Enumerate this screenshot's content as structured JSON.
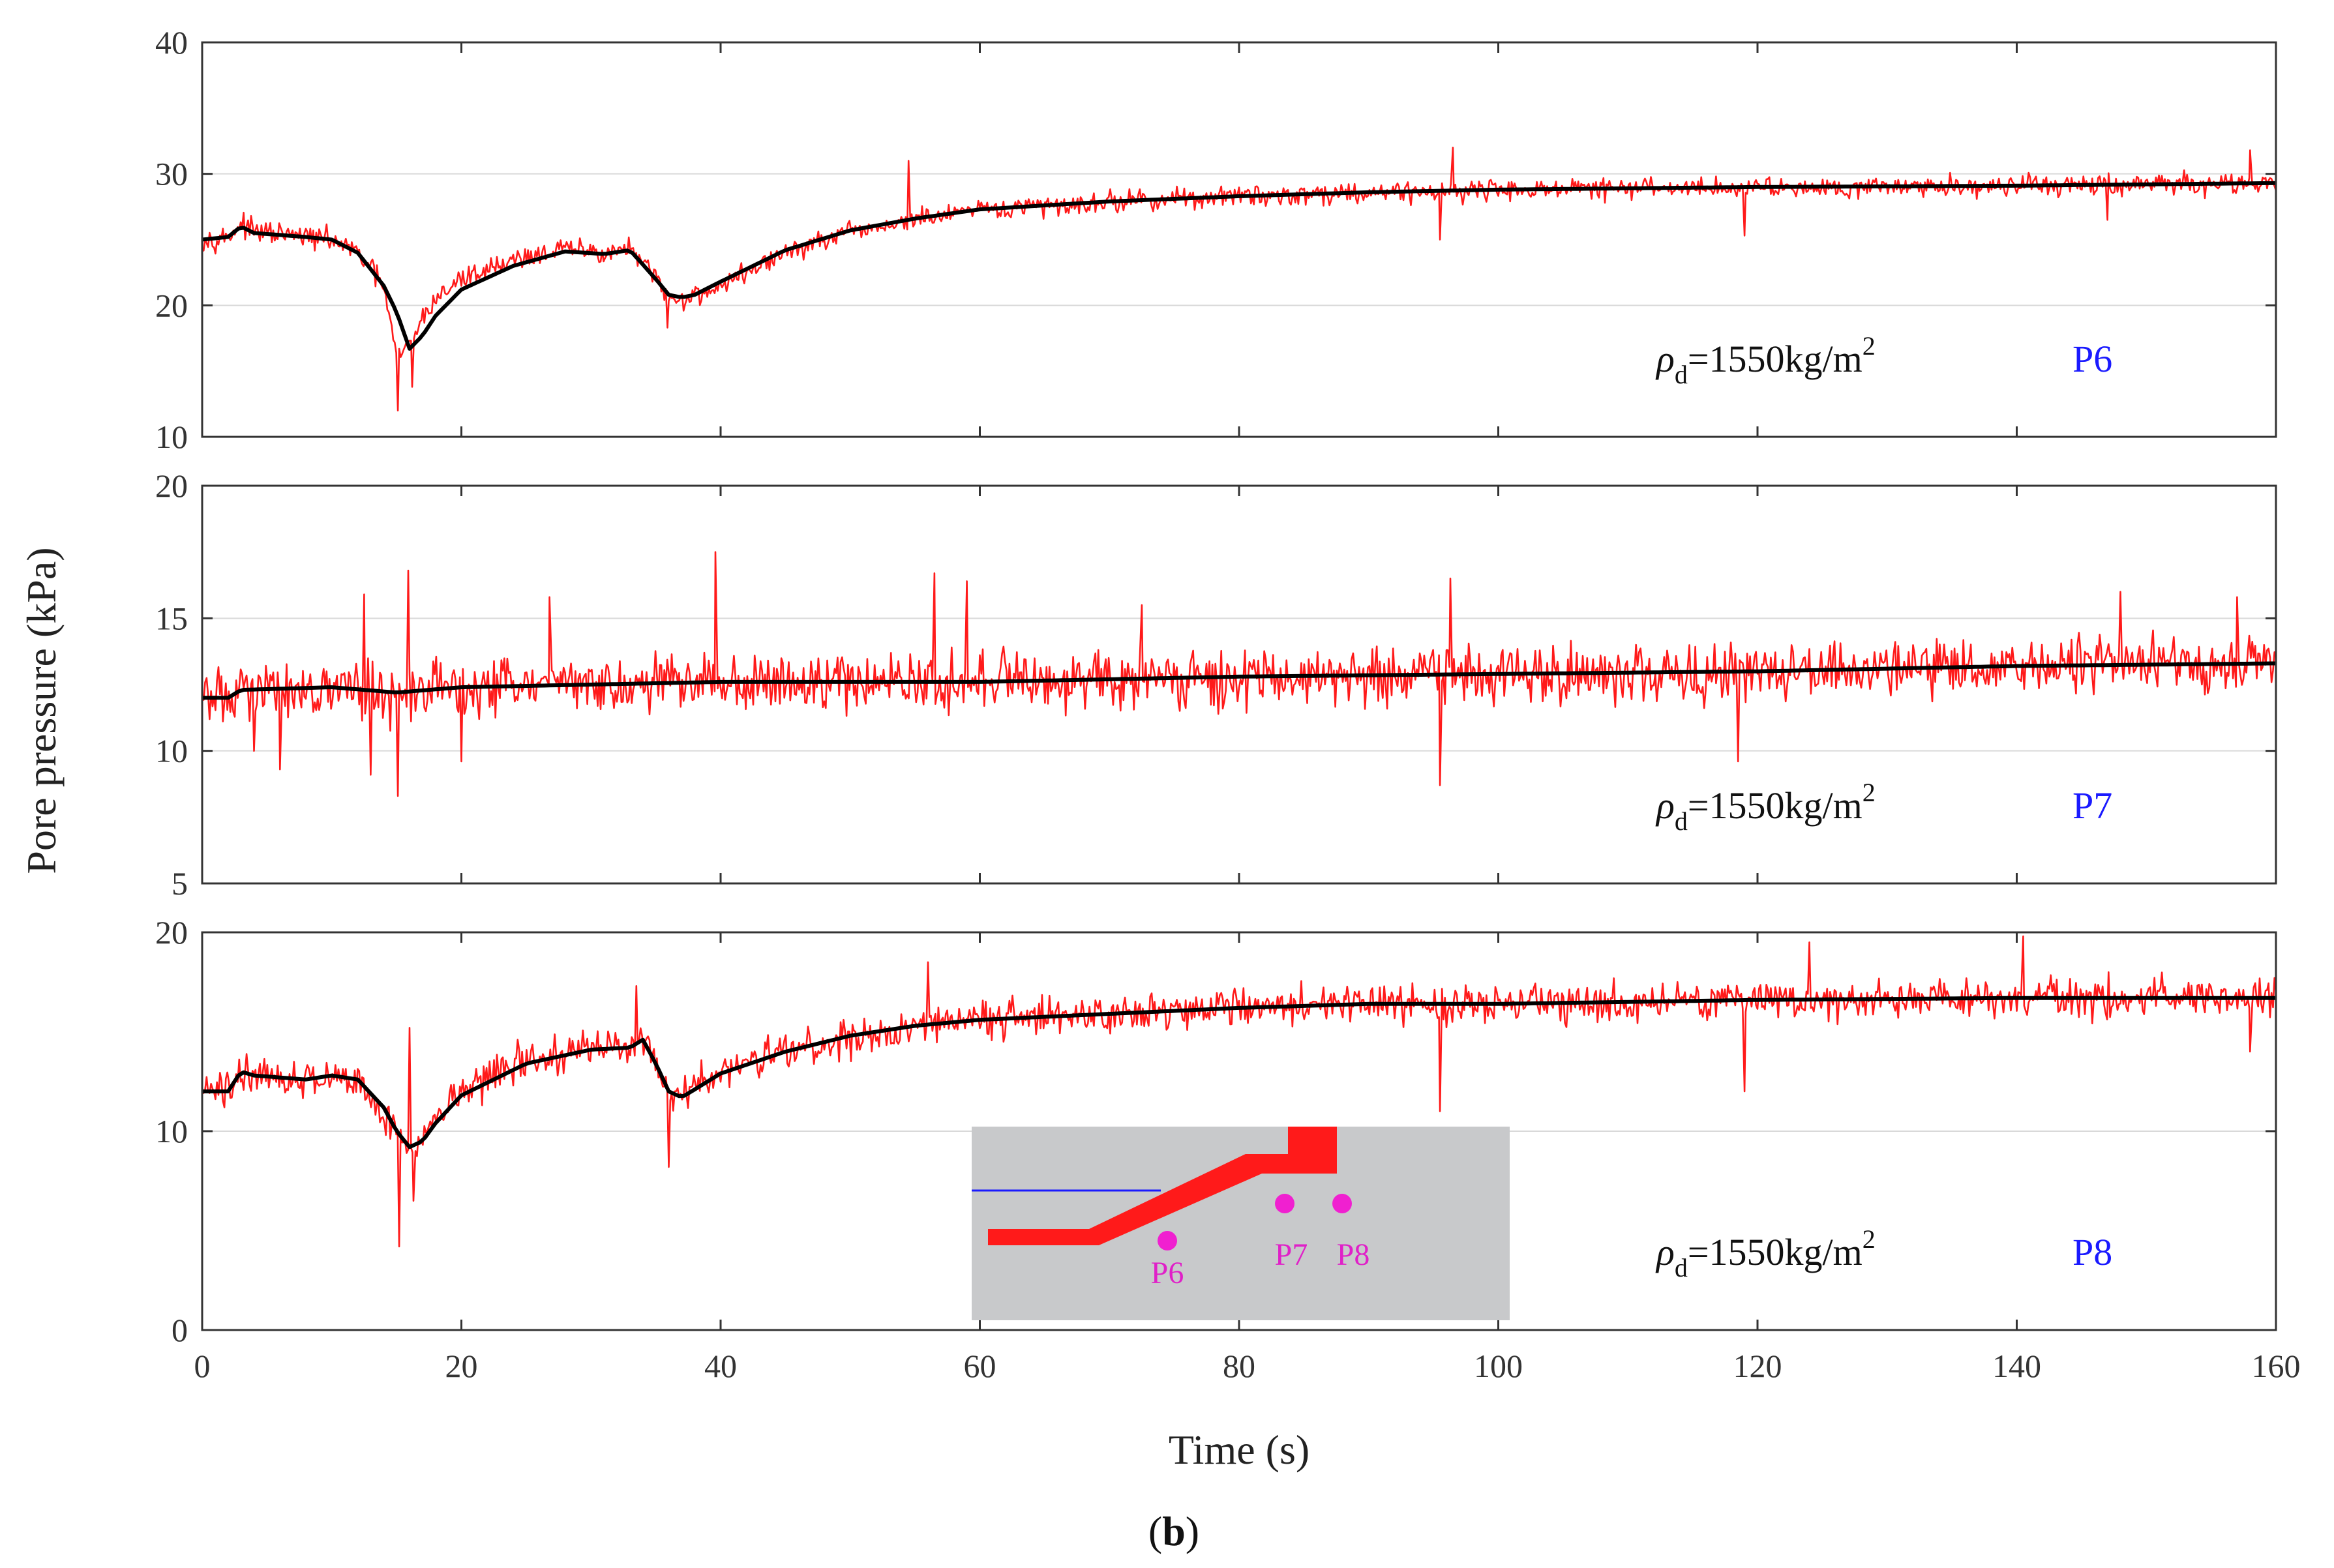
{
  "chart_data": [
    {
      "type": "line",
      "panel": "P6",
      "probe_label": "P6",
      "density_symbol": "ρ",
      "density_subscript": "d",
      "density_value": "=1550kg/m",
      "density_exponent": "2",
      "xlim": [
        0,
        160
      ],
      "ylim": [
        10,
        40
      ],
      "xticks": [
        0,
        20,
        40,
        60,
        80,
        100,
        120,
        140,
        160
      ],
      "yticks": [
        10,
        20,
        30,
        40
      ],
      "grid": true,
      "series": [
        {
          "name": "raw",
          "color": "#ff1a1a",
          "noise_amplitude": 1.2,
          "x": [
            0,
            2,
            3,
            4,
            8,
            10,
            12,
            14,
            15,
            16,
            17,
            18,
            20,
            24,
            28,
            31,
            33,
            35,
            36,
            37,
            38,
            40,
            45,
            50,
            55,
            60,
            70,
            80,
            90,
            100,
            120,
            140,
            160
          ],
          "values": [
            25,
            25.2,
            26.2,
            25.6,
            25.2,
            25,
            24,
            21.5,
            16,
            17,
            19,
            20.5,
            22,
            23.5,
            24.3,
            24,
            24.3,
            22,
            20.5,
            20.5,
            20.7,
            21.5,
            24,
            25.5,
            26.5,
            27.2,
            27.9,
            28.3,
            28.6,
            28.8,
            29.0,
            29.1,
            29.3
          ],
          "spikes": [
            [
              15.1,
              12.0
            ],
            [
              16.2,
              13.8
            ],
            [
              35.9,
              18.3
            ],
            [
              54.5,
              31.0
            ],
            [
              95.5,
              25.0
            ],
            [
              96.5,
              32.0
            ],
            [
              119,
              25.3
            ],
            [
              147,
              26.5
            ],
            [
              158,
              31.8
            ]
          ]
        },
        {
          "name": "trend",
          "color": "#000000",
          "x": [
            0,
            2,
            3,
            4,
            8,
            10,
            12,
            14,
            15,
            16,
            17,
            18,
            20,
            24,
            28,
            31,
            33,
            35,
            36,
            37,
            38,
            40,
            45,
            50,
            55,
            60,
            70,
            80,
            90,
            100,
            120,
            140,
            160
          ],
          "values": [
            25,
            25.2,
            26.0,
            25.5,
            25.2,
            25,
            24,
            21.5,
            19.5,
            16.7,
            17.7,
            19.2,
            21.2,
            23.0,
            24.1,
            23.9,
            24.2,
            22.0,
            20.8,
            20.6,
            20.8,
            21.8,
            24.2,
            25.7,
            26.6,
            27.3,
            27.9,
            28.3,
            28.6,
            28.8,
            29.0,
            29.1,
            29.3
          ]
        }
      ]
    },
    {
      "type": "line",
      "panel": "P7",
      "probe_label": "P7",
      "density_symbol": "ρ",
      "density_subscript": "d",
      "density_value": "=1550kg/m",
      "density_exponent": "2",
      "xlim": [
        0,
        160
      ],
      "ylim": [
        5,
        20
      ],
      "xticks": [
        0,
        20,
        40,
        60,
        80,
        100,
        120,
        140,
        160
      ],
      "yticks": [
        5,
        10,
        15,
        20
      ],
      "grid": true,
      "series": [
        {
          "name": "raw",
          "color": "#ff1a1a",
          "noise_amplitude": 1.6,
          "x": [
            0,
            2,
            3,
            10,
            15,
            20,
            30,
            40,
            60,
            80,
            100,
            120,
            140,
            160
          ],
          "values": [
            12.0,
            12.0,
            12.3,
            12.4,
            12.1,
            12.4,
            12.5,
            12.6,
            12.6,
            12.8,
            12.9,
            13.0,
            13.2,
            13.3
          ],
          "spikes": [
            [
              4,
              10.0
            ],
            [
              6,
              9.3
            ],
            [
              12.5,
              15.9
            ],
            [
              13.0,
              9.1
            ],
            [
              15.1,
              8.3
            ],
            [
              15.9,
              16.8
            ],
            [
              20.0,
              9.6
            ],
            [
              26.8,
              15.8
            ],
            [
              39.6,
              17.5
            ],
            [
              56.5,
              16.7
            ],
            [
              59.0,
              16.4
            ],
            [
              72.5,
              15.5
            ],
            [
              95.5,
              8.7
            ],
            [
              96.3,
              16.5
            ],
            [
              118.5,
              9.6
            ],
            [
              148,
              16.0
            ],
            [
              157,
              15.8
            ]
          ]
        },
        {
          "name": "trend",
          "color": "#000000",
          "x": [
            0,
            2,
            3,
            10,
            15,
            20,
            30,
            40,
            60,
            80,
            100,
            120,
            140,
            160
          ],
          "values": [
            12.0,
            12.0,
            12.3,
            12.4,
            12.2,
            12.4,
            12.5,
            12.6,
            12.6,
            12.8,
            12.9,
            13.0,
            13.2,
            13.3
          ]
        }
      ]
    },
    {
      "type": "line",
      "panel": "P8",
      "probe_label": "P8",
      "density_symbol": "ρ",
      "density_subscript": "d",
      "density_value": "=1550kg/m",
      "density_exponent": "2",
      "xlim": [
        0,
        160
      ],
      "ylim": [
        0,
        20
      ],
      "xticks": [
        0,
        20,
        40,
        60,
        80,
        100,
        120,
        140,
        160
      ],
      "yticks": [
        0,
        10,
        20
      ],
      "grid": true,
      "inset_labels": [
        "P6",
        "P7",
        "P8"
      ],
      "series": [
        {
          "name": "raw",
          "color": "#ff1a1a",
          "noise_amplitude": 1.4,
          "x": [
            0,
            2,
            3,
            4,
            8,
            10,
            12,
            14,
            15,
            16,
            17,
            18,
            20,
            25,
            30,
            33,
            34,
            35,
            36,
            37,
            38,
            40,
            45,
            50,
            55,
            60,
            70,
            80,
            90,
            100,
            120,
            140,
            160
          ],
          "values": [
            12,
            12,
            13.2,
            12.8,
            12.6,
            12.8,
            12.6,
            11,
            10,
            9.2,
            9.6,
            10.5,
            12,
            13.6,
            14.2,
            14.3,
            14.8,
            13.5,
            12.0,
            11.8,
            12.2,
            13.0,
            14.0,
            14.8,
            15.3,
            15.6,
            15.9,
            16.2,
            16.4,
            16.4,
            16.6,
            16.7,
            16.7
          ],
          "spikes": [
            [
              15.2,
              4.2
            ],
            [
              16.3,
              6.5
            ],
            [
              16.0,
              15.2
            ],
            [
              33.5,
              17.3
            ],
            [
              36.0,
              8.2
            ],
            [
              56,
              18.5
            ],
            [
              95.5,
              11.0
            ],
            [
              119,
              12.0
            ],
            [
              124,
              19.5
            ],
            [
              140.5,
              19.8
            ],
            [
              158,
              14.0
            ]
          ]
        },
        {
          "name": "trend",
          "color": "#000000",
          "x": [
            0,
            2,
            3,
            4,
            8,
            10,
            12,
            14,
            15,
            16,
            17,
            18,
            20,
            25,
            30,
            33,
            34,
            35,
            36,
            37,
            38,
            40,
            45,
            50,
            55,
            60,
            70,
            80,
            90,
            100,
            120,
            140,
            160
          ],
          "values": [
            12,
            12,
            13.0,
            12.8,
            12.6,
            12.8,
            12.6,
            11.2,
            10.0,
            9.2,
            9.5,
            10.4,
            11.8,
            13.4,
            14.1,
            14.2,
            14.6,
            13.4,
            12.0,
            11.7,
            12.1,
            12.9,
            14.0,
            14.8,
            15.3,
            15.6,
            15.9,
            16.2,
            16.4,
            16.4,
            16.6,
            16.7,
            16.7
          ]
        }
      ]
    }
  ],
  "axes": {
    "xlabel": "Time (s)",
    "ylabel": "Pore pressure (kPa)"
  },
  "caption": {
    "open": "(",
    "letter": "b",
    "close": ")"
  },
  "colors": {
    "raw": "#ff1a1a",
    "trend": "#000000",
    "probe_label": "#1a1aff",
    "inset_ground": "#c8c9cb",
    "inset_slab": "#ff1a1a",
    "inset_probe": "#f020d0",
    "inset_water": "#1a1aff"
  }
}
